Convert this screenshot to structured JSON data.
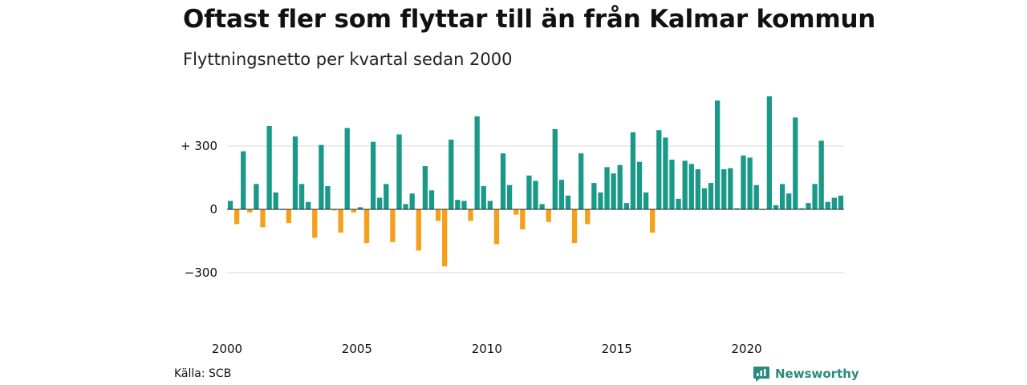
{
  "title": "Oftast fler som flyttar till än från Kalmar kommun",
  "subtitle": "Flyttningsnetto per kvartal sedan 2000",
  "source": "Källa: SCB",
  "brand": "Newsworthy",
  "colors": {
    "positive": "#1a9988",
    "negative": "#f5a01a",
    "grid": "#d9d9d9",
    "baseline": "#222222"
  },
  "chart_data": {
    "type": "bar",
    "title": "Oftast fler som flyttar till än från Kalmar kommun",
    "subtitle": "Flyttningsnetto per kvartal sedan 2000",
    "xlabel": "",
    "ylabel": "",
    "ylim": [
      -450,
      550
    ],
    "yticks": [
      -300,
      0,
      300
    ],
    "ytick_labels": [
      "−300",
      "0",
      "+ 300"
    ],
    "xticks": [
      "2000",
      "2005",
      "2010",
      "2015",
      "2020"
    ],
    "grid": true,
    "legend": "none",
    "categories": [
      "2000 Q1",
      "2000 Q2",
      "2000 Q3",
      "2000 Q4",
      "2001 Q1",
      "2001 Q2",
      "2001 Q3",
      "2001 Q4",
      "2002 Q1",
      "2002 Q2",
      "2002 Q3",
      "2002 Q4",
      "2003 Q1",
      "2003 Q2",
      "2003 Q3",
      "2003 Q4",
      "2004 Q1",
      "2004 Q2",
      "2004 Q3",
      "2004 Q4",
      "2005 Q1",
      "2005 Q2",
      "2005 Q3",
      "2005 Q4",
      "2006 Q1",
      "2006 Q2",
      "2006 Q3",
      "2006 Q4",
      "2007 Q1",
      "2007 Q2",
      "2007 Q3",
      "2007 Q4",
      "2008 Q1",
      "2008 Q2",
      "2008 Q3",
      "2008 Q4",
      "2009 Q1",
      "2009 Q2",
      "2009 Q3",
      "2009 Q4",
      "2010 Q1",
      "2010 Q2",
      "2010 Q3",
      "2010 Q4",
      "2011 Q1",
      "2011 Q2",
      "2011 Q3",
      "2011 Q4",
      "2012 Q1",
      "2012 Q2",
      "2012 Q3",
      "2012 Q4",
      "2013 Q1",
      "2013 Q2",
      "2013 Q3",
      "2013 Q4",
      "2014 Q1",
      "2014 Q2",
      "2014 Q3",
      "2014 Q4",
      "2015 Q1",
      "2015 Q2",
      "2015 Q3",
      "2015 Q4",
      "2016 Q1",
      "2016 Q2",
      "2016 Q3",
      "2016 Q4",
      "2017 Q1",
      "2017 Q2",
      "2017 Q3",
      "2017 Q4",
      "2018 Q1",
      "2018 Q2",
      "2018 Q3",
      "2018 Q4",
      "2019 Q1",
      "2019 Q2",
      "2019 Q3",
      "2019 Q4",
      "2020 Q1",
      "2020 Q2",
      "2020 Q3",
      "2020 Q4",
      "2021 Q1",
      "2021 Q2",
      "2021 Q3",
      "2021 Q4",
      "2022 Q1",
      "2022 Q2",
      "2022 Q3",
      "2022 Q4",
      "2023 Q1",
      "2023 Q2",
      "2023 Q3"
    ],
    "values": [
      40,
      -70,
      275,
      -15,
      120,
      -85,
      395,
      80,
      0,
      -65,
      345,
      120,
      35,
      -135,
      305,
      110,
      -5,
      -110,
      385,
      -15,
      10,
      -160,
      320,
      55,
      120,
      -155,
      355,
      25,
      75,
      -195,
      205,
      90,
      -55,
      -270,
      330,
      45,
      40,
      -55,
      440,
      110,
      40,
      -165,
      265,
      115,
      -25,
      -95,
      160,
      135,
      25,
      -60,
      380,
      140,
      65,
      -160,
      265,
      -70,
      125,
      80,
      200,
      170,
      210,
      30,
      365,
      225,
      80,
      -110,
      375,
      340,
      235,
      50,
      230,
      215,
      190,
      100,
      125,
      515,
      190,
      195,
      5,
      255,
      245,
      115,
      0,
      535,
      20,
      120,
      75,
      435,
      5,
      30,
      120,
      325,
      35,
      55,
      65
    ]
  }
}
